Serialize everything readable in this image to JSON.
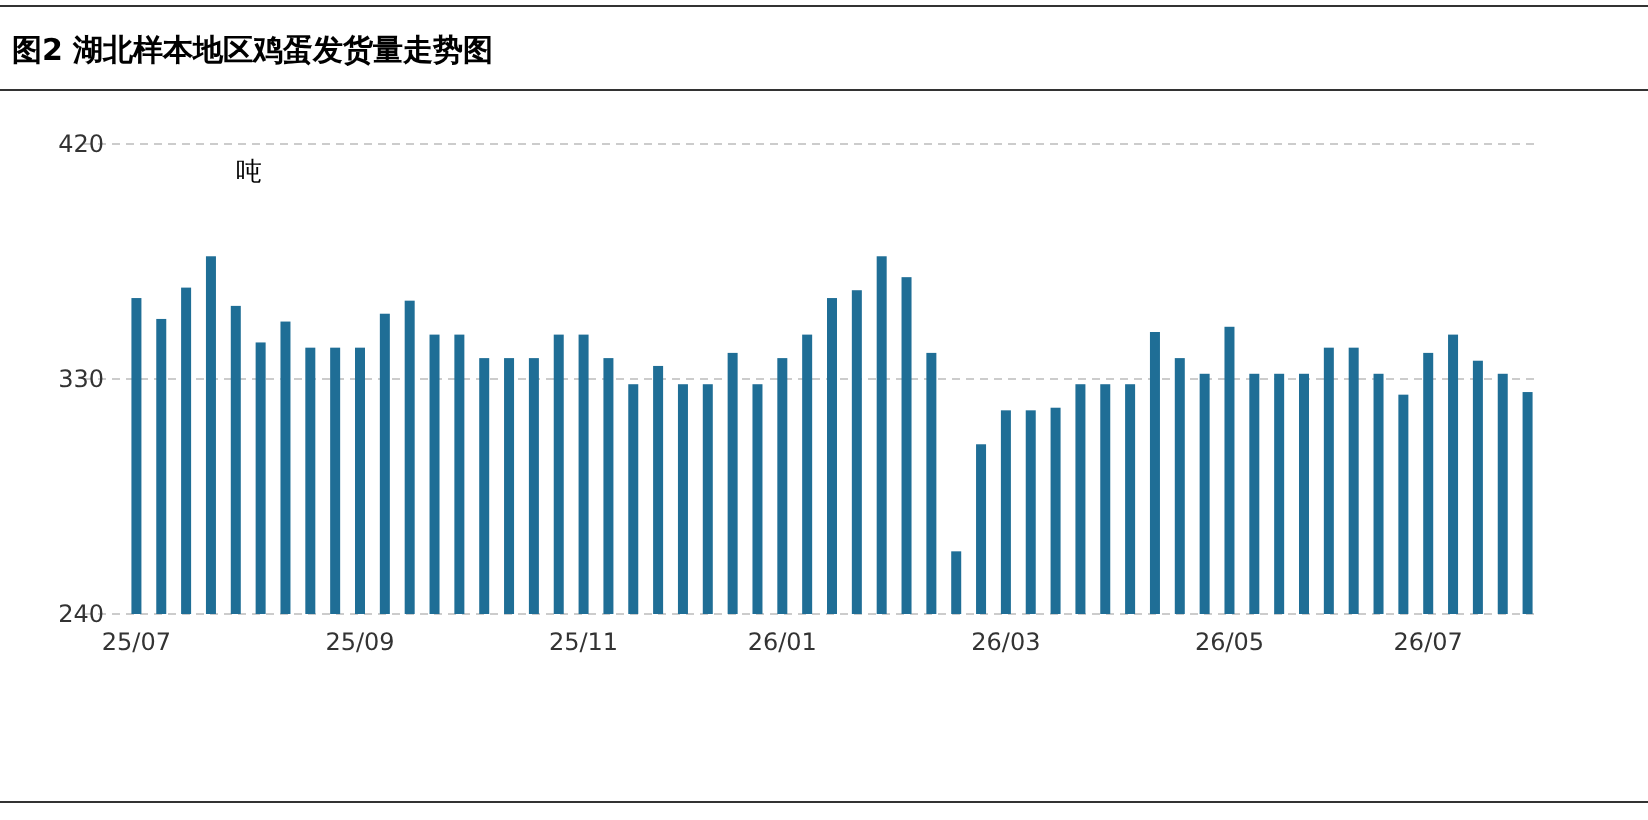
{
  "chart_data": {
    "type": "bar",
    "title": "图2 湖北样本地区鸡蛋发货量走势图",
    "ylabel": "吨",
    "categories": [
      "25/07",
      null,
      null,
      null,
      null,
      null,
      null,
      null,
      null,
      "25/09",
      null,
      null,
      null,
      null,
      null,
      null,
      null,
      null,
      "25/11",
      null,
      null,
      null,
      null,
      null,
      null,
      null,
      "26/01",
      null,
      null,
      null,
      null,
      null,
      null,
      null,
      null,
      "26/03",
      null,
      null,
      null,
      null,
      null,
      null,
      null,
      null,
      "26/05",
      null,
      null,
      null,
      null,
      null,
      null,
      null,
      "26/07",
      null,
      null,
      null,
      null
    ],
    "values": [
      361,
      353,
      365,
      377,
      358,
      344,
      352,
      342,
      342,
      342,
      355,
      360,
      347,
      347,
      338,
      338,
      338,
      347,
      347,
      338,
      328,
      335,
      328,
      328,
      340,
      328,
      338,
      347,
      361,
      364,
      377,
      369,
      340,
      264,
      305,
      318,
      318,
      319,
      328,
      328,
      328,
      348,
      338,
      332,
      350,
      332,
      332,
      332,
      342,
      342,
      332,
      324,
      340,
      347,
      337,
      332,
      325
    ],
    "color": "#1f6e96",
    "ylim": [
      240,
      420
    ],
    "yticks": [
      240,
      330,
      420
    ],
    "grid": "y"
  }
}
